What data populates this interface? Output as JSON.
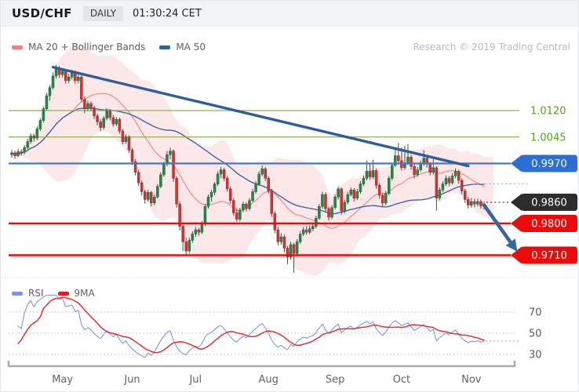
{
  "header": {
    "symbol": "USD/CHF",
    "timeframe": "DAILY",
    "time": "01:30:24 CET"
  },
  "research_note": "Research © 2019 Trading Central",
  "legend_main": [
    {
      "label": "MA 20 + Bollinger Bands",
      "color": "#f07f7f"
    },
    {
      "label": "MA 50",
      "color": "#33639f"
    }
  ],
  "legend_rsi": [
    {
      "label": "RSI",
      "color": "#7b96e0"
    },
    {
      "label": "9MA",
      "color": "#e02020"
    }
  ],
  "chart_data": {
    "type": "candlestick",
    "title": "USD/CHF DAILY",
    "x_axis": {
      "months": [
        {
          "label": "May",
          "index": 16
        },
        {
          "label": "Jun",
          "index": 38
        },
        {
          "label": "Jul",
          "index": 58
        },
        {
          "label": "Aug",
          "index": 81
        },
        {
          "label": "Sep",
          "index": 102
        },
        {
          "label": "Oct",
          "index": 123
        },
        {
          "label": "Nov",
          "index": 145
        }
      ]
    },
    "y_axis": {
      "side": "right",
      "range": [
        0.965,
        1.0265
      ]
    },
    "price_levels": [
      {
        "value": 1.012,
        "label": "1.0120",
        "kind": "target-line",
        "color": "#8ab44c",
        "text_color": "#55a023",
        "badge": false
      },
      {
        "value": 1.0045,
        "label": "1.0045",
        "kind": "target-line",
        "color": "#8ab44c",
        "text_color": "#55a023",
        "badge": false
      },
      {
        "value": 0.997,
        "label": "0.9970",
        "kind": "pivot-line",
        "color": "#3d78dd",
        "badge": true,
        "badge_color": "#2b6fd4"
      },
      {
        "value": 0.986,
        "label": "0.9860",
        "kind": "last-price",
        "color": "#4a4a4a",
        "badge": true,
        "badge_color": "#2d2d2d",
        "dotted": true
      },
      {
        "value": 0.98,
        "label": "0.9800",
        "kind": "support-line",
        "color": "#ee0a0a",
        "badge": true,
        "badge_color": "#ee0a0a"
      },
      {
        "value": 0.971,
        "label": "0.9710",
        "kind": "support-line",
        "color": "#ee0a0a",
        "badge": true,
        "badge_color": "#ee0a0a"
      }
    ],
    "trendline": {
      "from_index": 13,
      "from_price": 1.0243,
      "to_index": 144,
      "to_price": 0.9963,
      "color": "#2d5d9d"
    },
    "projection_arrow": {
      "from_index": 149,
      "from_price": 0.9852,
      "to_index": 159.5,
      "to_price": 0.972,
      "color": "#38679f"
    },
    "dotted_projections": [
      {
        "price": 0.9912,
        "from_index": 145.5,
        "to_index": 163,
        "color": "#9db3d9"
      }
    ],
    "indicators": {
      "bollinger": {
        "period": 20,
        "stddev": 2,
        "band_fill": "rgba(242,139,139,0.20)",
        "ma_color": "#ef8f8f"
      },
      "ma50": {
        "period": 50,
        "color": "#3a68a8"
      },
      "rsi": {
        "period": 14,
        "ma_period": 9,
        "line_color": "#8097e0",
        "ma_color": "#e23030",
        "ticks": [
          70,
          50,
          30
        ]
      }
    },
    "candles": [
      [
        0.9995,
        1.0008,
        0.9986,
        1.0
      ],
      [
        1.0,
        1.0006,
        0.9983,
        0.9992
      ],
      [
        0.9992,
        1.0012,
        0.9988,
        1.0003
      ],
      [
        1.0003,
        1.001,
        0.9992,
        1.0002
      ],
      [
        1.0002,
        1.0022,
        0.9996,
        1.0015
      ],
      [
        1.0015,
        1.004,
        1.001,
        1.0032
      ],
      [
        1.0032,
        1.0055,
        1.0026,
        1.0048
      ],
      [
        1.0048,
        1.0054,
        1.0032,
        1.0042
      ],
      [
        1.0042,
        1.0075,
        1.0036,
        1.0068
      ],
      [
        1.0068,
        1.0098,
        1.0062,
        1.0092
      ],
      [
        1.0092,
        1.0132,
        1.0086,
        1.0125
      ],
      [
        1.0125,
        1.017,
        1.012,
        1.0162
      ],
      [
        1.0162,
        1.0192,
        1.0148,
        1.0185
      ],
      [
        1.0185,
        1.0228,
        1.018,
        1.0218
      ],
      [
        1.0218,
        1.025,
        1.021,
        1.024
      ],
      [
        1.024,
        1.0246,
        1.0212,
        1.0222
      ],
      [
        1.0222,
        1.024,
        1.0214,
        1.0232
      ],
      [
        1.0232,
        1.0238,
        1.0196,
        1.0205
      ],
      [
        1.0205,
        1.0224,
        1.0198,
        1.0215
      ],
      [
        1.0215,
        1.0236,
        1.0208,
        1.0228
      ],
      [
        1.0228,
        1.0234,
        1.0196,
        1.0205
      ],
      [
        1.0205,
        1.0226,
        1.0198,
        1.0215
      ],
      [
        1.0215,
        1.022,
        1.0144,
        1.0152
      ],
      [
        1.0152,
        1.016,
        1.0112,
        1.0125
      ],
      [
        1.0125,
        1.0148,
        1.0118,
        1.014
      ],
      [
        1.014,
        1.0146,
        1.0118,
        1.0128
      ],
      [
        1.0128,
        1.0134,
        1.0096,
        1.0105
      ],
      [
        1.0105,
        1.0112,
        1.0078,
        1.0088
      ],
      [
        1.0088,
        1.0096,
        1.0062,
        1.0072
      ],
      [
        1.0072,
        1.0104,
        1.0066,
        1.0098
      ],
      [
        1.0098,
        1.0126,
        1.0092,
        1.0118
      ],
      [
        1.0118,
        1.0124,
        1.0092,
        1.01
      ],
      [
        1.01,
        1.0108,
        1.0074,
        1.0082
      ],
      [
        1.0082,
        1.0102,
        1.0076,
        1.0095
      ],
      [
        1.0095,
        1.01,
        1.0054,
        1.0062
      ],
      [
        1.0062,
        1.0068,
        1.0024,
        1.0032
      ],
      [
        1.0032,
        1.0052,
        1.0026,
        1.0045
      ],
      [
        1.0045,
        1.005,
        1.0,
        1.0008
      ],
      [
        1.0008,
        1.0014,
        0.9966,
        0.9975
      ],
      [
        0.9975,
        0.9982,
        0.9936,
        0.9945
      ],
      [
        0.9945,
        0.9952,
        0.9906,
        0.9915
      ],
      [
        0.9915,
        0.9922,
        0.988,
        0.989
      ],
      [
        0.989,
        0.9896,
        0.9856,
        0.9868
      ],
      [
        0.9868,
        0.9895,
        0.9862,
        0.9888
      ],
      [
        0.9888,
        0.9892,
        0.9848,
        0.9858
      ],
      [
        0.9858,
        0.9882,
        0.9852,
        0.9875
      ],
      [
        0.9875,
        0.9912,
        0.987,
        0.9905
      ],
      [
        0.9905,
        0.9945,
        0.99,
        0.9938
      ],
      [
        0.9938,
        0.9975,
        0.9932,
        0.9968
      ],
      [
        0.9968,
        1.0005,
        0.9962,
        0.9995
      ],
      [
        0.9995,
        1.0015,
        0.9982,
        1.0005
      ],
      [
        1.0005,
        1.001,
        0.9918,
        0.9928
      ],
      [
        0.9928,
        0.9934,
        0.9845,
        0.9855
      ],
      [
        0.9855,
        0.9862,
        0.978,
        0.9792
      ],
      [
        0.9792,
        0.9798,
        0.9722,
        0.9748
      ],
      [
        0.9748,
        0.976,
        0.9712,
        0.9722
      ],
      [
        0.9722,
        0.976,
        0.9715,
        0.9752
      ],
      [
        0.9752,
        0.9778,
        0.9745,
        0.977
      ],
      [
        0.977,
        0.979,
        0.9762,
        0.9782
      ],
      [
        0.9782,
        0.9788,
        0.9765,
        0.9775
      ],
      [
        0.9775,
        0.9806,
        0.977,
        0.9798
      ],
      [
        0.9798,
        0.9855,
        0.9792,
        0.9848
      ],
      [
        0.9848,
        0.9882,
        0.9842,
        0.9875
      ],
      [
        0.9875,
        0.9895,
        0.9862,
        0.9888
      ],
      [
        0.9888,
        0.9918,
        0.988,
        0.9912
      ],
      [
        0.9912,
        0.9948,
        0.9906,
        0.994
      ],
      [
        0.994,
        0.996,
        0.9928,
        0.9952
      ],
      [
        0.9952,
        0.9958,
        0.992,
        0.9928
      ],
      [
        0.9928,
        0.9935,
        0.989,
        0.9898
      ],
      [
        0.9898,
        0.9905,
        0.9856,
        0.9865
      ],
      [
        0.9865,
        0.9872,
        0.9822,
        0.983
      ],
      [
        0.983,
        0.9845,
        0.9805,
        0.9812
      ],
      [
        0.9812,
        0.9845,
        0.9806,
        0.9838
      ],
      [
        0.9838,
        0.9862,
        0.9832,
        0.9855
      ],
      [
        0.9855,
        0.986,
        0.9834,
        0.9842
      ],
      [
        0.9842,
        0.9872,
        0.9836,
        0.9865
      ],
      [
        0.9865,
        0.9898,
        0.986,
        0.989
      ],
      [
        0.989,
        0.992,
        0.9884,
        0.9912
      ],
      [
        0.9912,
        0.9948,
        0.9906,
        0.994
      ],
      [
        0.994,
        0.9965,
        0.9934,
        0.9955
      ],
      [
        0.9955,
        0.996,
        0.992,
        0.9928
      ],
      [
        0.9928,
        0.9934,
        0.9884,
        0.9892
      ],
      [
        0.9892,
        0.9898,
        0.9818,
        0.9828
      ],
      [
        0.9828,
        0.9835,
        0.9772,
        0.9782
      ],
      [
        0.9782,
        0.979,
        0.9738,
        0.9748
      ],
      [
        0.9748,
        0.9772,
        0.974,
        0.9762
      ],
      [
        0.9762,
        0.9768,
        0.9718,
        0.973
      ],
      [
        0.973,
        0.9736,
        0.9685,
        0.9705
      ],
      [
        0.9705,
        0.9748,
        0.9698,
        0.974
      ],
      [
        0.974,
        0.9745,
        0.966,
        0.9715
      ],
      [
        0.9715,
        0.9755,
        0.9708,
        0.9748
      ],
      [
        0.9748,
        0.9778,
        0.9742,
        0.977
      ],
      [
        0.977,
        0.979,
        0.9764,
        0.9782
      ],
      [
        0.9782,
        0.9792,
        0.9768,
        0.9775
      ],
      [
        0.9775,
        0.9795,
        0.977,
        0.9785
      ],
      [
        0.9785,
        0.98,
        0.9778,
        0.9792
      ],
      [
        0.9792,
        0.9822,
        0.9786,
        0.9815
      ],
      [
        0.9815,
        0.9855,
        0.981,
        0.9848
      ],
      [
        0.9848,
        0.989,
        0.9842,
        0.9882
      ],
      [
        0.9882,
        0.9888,
        0.9834,
        0.9842
      ],
      [
        0.9842,
        0.9848,
        0.9808,
        0.9818
      ],
      [
        0.9818,
        0.9852,
        0.9812,
        0.9845
      ],
      [
        0.9845,
        0.9882,
        0.984,
        0.9875
      ],
      [
        0.9875,
        0.9905,
        0.9868,
        0.9898
      ],
      [
        0.9898,
        0.9902,
        0.9825,
        0.9835
      ],
      [
        0.9835,
        0.9868,
        0.9828,
        0.986
      ],
      [
        0.986,
        0.989,
        0.9854,
        0.9882
      ],
      [
        0.9882,
        0.9902,
        0.9876,
        0.9895
      ],
      [
        0.9895,
        0.99,
        0.9862,
        0.9872
      ],
      [
        0.9872,
        0.9898,
        0.9866,
        0.989
      ],
      [
        0.989,
        0.992,
        0.9884,
        0.9912
      ],
      [
        0.9912,
        0.9936,
        0.9906,
        0.9928
      ],
      [
        0.9928,
        0.9978,
        0.9922,
        0.9948
      ],
      [
        0.9948,
        0.9972,
        0.9924,
        0.9932
      ],
      [
        0.9932,
        0.998,
        0.9926,
        0.995
      ],
      [
        0.995,
        0.9955,
        0.9898,
        0.9908
      ],
      [
        0.9908,
        0.9914,
        0.987,
        0.988
      ],
      [
        0.988,
        0.9886,
        0.9848,
        0.9858
      ],
      [
        0.9858,
        0.9892,
        0.9852,
        0.9885
      ],
      [
        0.9885,
        0.9935,
        0.988,
        0.9928
      ],
      [
        0.9928,
        0.9972,
        0.9922,
        0.9965
      ],
      [
        0.9965,
        1.0012,
        0.996,
        0.9992
      ],
      [
        0.9992,
        1.0028,
        0.997,
        0.9978
      ],
      [
        0.9978,
        1.0015,
        0.995,
        0.9958
      ],
      [
        0.9958,
        1.002,
        0.9952,
        0.9972
      ],
      [
        0.9972,
        1.0025,
        0.9966,
        0.9988
      ],
      [
        0.9988,
        0.9994,
        0.9952,
        0.9962
      ],
      [
        0.9962,
        0.9968,
        0.9928,
        0.9938
      ],
      [
        0.9938,
        0.996,
        0.9932,
        0.9952
      ],
      [
        0.9952,
        0.9978,
        0.9946,
        0.997
      ],
      [
        0.997,
        1.0008,
        0.9964,
        0.9985
      ],
      [
        0.9985,
        0.9992,
        0.9958,
        0.9968
      ],
      [
        0.9968,
        0.9974,
        0.9936,
        0.9945
      ],
      [
        0.9945,
        0.9982,
        0.9938,
        0.9958
      ],
      [
        0.9958,
        0.9962,
        0.9836,
        0.9872
      ],
      [
        0.9872,
        0.9902,
        0.9866,
        0.9895
      ],
      [
        0.9895,
        0.992,
        0.9888,
        0.9912
      ],
      [
        0.9912,
        0.9936,
        0.9906,
        0.9928
      ],
      [
        0.9928,
        0.9934,
        0.9905,
        0.9915
      ],
      [
        0.9915,
        0.9942,
        0.991,
        0.9935
      ],
      [
        0.9935,
        0.9956,
        0.9928,
        0.9948
      ],
      [
        0.9948,
        0.9952,
        0.9912,
        0.9922
      ],
      [
        0.9922,
        0.9928,
        0.9882,
        0.9892
      ],
      [
        0.9892,
        0.9898,
        0.9858,
        0.9868
      ],
      [
        0.9868,
        0.9875,
        0.9842,
        0.9852
      ],
      [
        0.9852,
        0.9872,
        0.9845,
        0.9862
      ],
      [
        0.9862,
        0.987,
        0.9846,
        0.9855
      ],
      [
        0.9855,
        0.987,
        0.9848,
        0.9862
      ],
      [
        0.9862,
        0.9868,
        0.9842,
        0.985
      ],
      [
        0.985,
        0.9862,
        0.984,
        0.9856
      ]
    ]
  }
}
